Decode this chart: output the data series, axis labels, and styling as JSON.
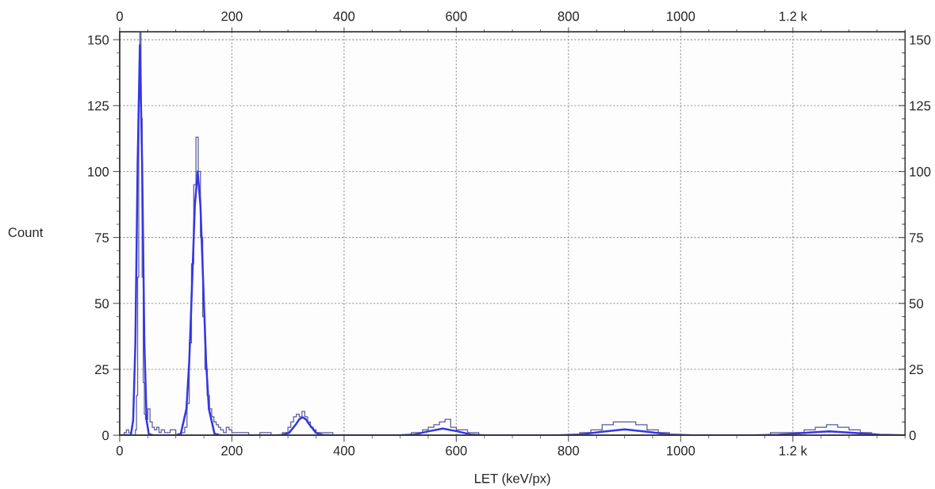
{
  "chart_data": {
    "type": "histogram",
    "xlabel": "LET (keV/px)",
    "ylabel": "Count",
    "xlim": [
      0,
      1400
    ],
    "xticks": [
      0,
      200,
      400,
      600,
      800,
      1000,
      {
        "value": 1200,
        "label": "1.2 k"
      }
    ],
    "x2lim": [
      0,
      1400
    ],
    "x2ticks": [
      0,
      200,
      400,
      600,
      800,
      1000,
      {
        "value": 1200,
        "label": "1.2 k"
      }
    ],
    "ylim": [
      0,
      153
    ],
    "yticks": [
      0,
      25,
      50,
      75,
      100,
      125,
      150
    ],
    "y2lim": [
      0,
      153
    ],
    "y2ticks": [
      0,
      25,
      50,
      75,
      100,
      125,
      150
    ],
    "grid": true,
    "legend": false,
    "series": [
      {
        "color": "#5a5a9c",
        "bins": [
          0,
          8,
          12,
          16,
          20,
          24,
          28,
          30,
          32,
          34,
          36,
          38,
          40,
          42,
          44,
          46,
          50,
          54,
          58,
          62,
          66,
          70,
          74,
          80,
          90,
          100,
          110,
          116,
          120,
          124,
          128,
          132,
          136,
          140,
          144,
          148,
          152,
          156,
          160,
          164,
          168,
          172,
          176,
          180,
          185,
          190,
          195,
          200,
          210,
          230,
          250,
          270,
          290,
          300,
          305,
          310,
          315,
          320,
          325,
          330,
          335,
          340,
          345,
          350,
          360,
          380,
          400,
          520,
          540,
          550,
          560,
          570,
          580,
          590,
          600,
          610,
          620,
          640,
          700,
          760,
          820,
          840,
          860,
          880,
          900,
          920,
          940,
          960,
          980,
          1160,
          1200,
          1220,
          1240,
          1260,
          1280,
          1300,
          1320,
          1340,
          1400
        ],
        "values": [
          0,
          1,
          2,
          1,
          0,
          0,
          2,
          15,
          60,
          130,
          153,
          120,
          60,
          20,
          8,
          6,
          10,
          5,
          3,
          2,
          3,
          1,
          2,
          1,
          2,
          0,
          1,
          3,
          12,
          35,
          65,
          95,
          113,
          100,
          75,
          45,
          25,
          15,
          10,
          7,
          5,
          4,
          3,
          2,
          1,
          3,
          2,
          1,
          1,
          0,
          1,
          0,
          1,
          3,
          5,
          7,
          8,
          7,
          9,
          7,
          5,
          3,
          2,
          1,
          1,
          0,
          0,
          1,
          2,
          3,
          4,
          5,
          6,
          3,
          2,
          2,
          1,
          0,
          0,
          0,
          1,
          2,
          4,
          5,
          5,
          4,
          2,
          1,
          0,
          1,
          1,
          2,
          3,
          4,
          3,
          2,
          1,
          0
        ]
      },
      {
        "type": "line",
        "color": "#3535e8",
        "x": [
          0,
          20,
          24,
          28,
          32,
          36,
          40,
          44,
          48,
          52,
          60,
          100,
          109,
          119,
          124,
          129,
          134,
          139,
          144,
          149,
          154,
          159,
          169,
          180,
          280,
          290,
          302,
          314,
          320,
          326,
          332,
          338,
          350,
          362,
          380,
          500,
          526,
          551,
          576,
          601,
          626,
          650,
          700,
          780,
          820,
          860,
          900,
          940,
          980,
          1020,
          1100,
          1130,
          1175,
          1220,
          1265,
          1310,
          1355,
          1400
        ],
        "values": [
          0,
          0.1,
          5.6,
          35,
          103,
          148,
          103,
          35,
          5.6,
          0.4,
          0,
          0,
          0.6,
          10,
          28,
          57,
          87,
          100,
          87,
          57,
          28,
          10,
          0.6,
          0,
          0,
          0.1,
          0.9,
          4.1,
          6.0,
          6.8,
          6.0,
          4.1,
          0.9,
          0.1,
          0,
          0,
          0.3,
          1.5,
          2.5,
          1.5,
          0.3,
          0,
          0,
          0,
          0.3,
          1.3,
          2.2,
          1.3,
          0.3,
          0,
          0,
          0,
          0.2,
          0.9,
          1.5,
          0.9,
          0.2,
          0
        ]
      }
    ]
  }
}
